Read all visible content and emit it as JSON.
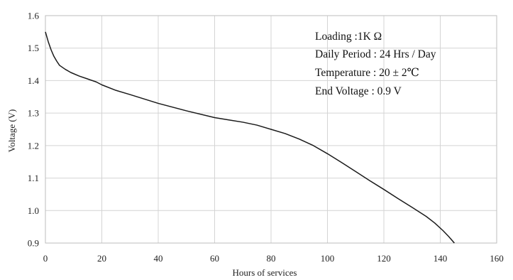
{
  "chart_data": {
    "type": "line",
    "title": "",
    "xlabel": "Hours of services",
    "ylabel": "Voltage (V)",
    "xlim": [
      0,
      160
    ],
    "ylim": [
      0.9,
      1.6
    ],
    "xticks": [
      0,
      20,
      40,
      60,
      80,
      100,
      120,
      140,
      160
    ],
    "yticks": [
      0.9,
      1.0,
      1.1,
      1.2,
      1.3,
      1.4,
      1.5,
      1.6
    ],
    "xtick_labels": [
      "0",
      "20",
      "40",
      "60",
      "80",
      "100",
      "120",
      "140",
      "160"
    ],
    "ytick_labels": [
      "0.9",
      "1.0",
      "1.1",
      "1.2",
      "1.3",
      "1.4",
      "1.5",
      "1.6"
    ],
    "grid": true,
    "annotations": [
      "Loading :1K Ω",
      "Daily Period : 24 Hrs / Day",
      "Temperature : 20 ± 2℃",
      "End Voltage :  0.9 V"
    ],
    "series": [
      {
        "x": [
          0,
          1,
          2,
          3,
          4,
          5,
          7,
          9,
          12,
          15,
          18,
          20,
          25,
          30,
          40,
          50,
          60,
          65,
          70,
          75,
          80,
          85,
          90,
          95,
          100,
          105,
          110,
          115,
          120,
          125,
          130,
          135,
          138,
          141,
          143,
          145
        ],
        "y": [
          1.55,
          1.52,
          1.495,
          1.475,
          1.46,
          1.447,
          1.435,
          1.425,
          1.414,
          1.405,
          1.396,
          1.387,
          1.37,
          1.357,
          1.33,
          1.307,
          1.286,
          1.279,
          1.272,
          1.263,
          1.25,
          1.237,
          1.22,
          1.2,
          1.175,
          1.148,
          1.12,
          1.092,
          1.065,
          1.037,
          1.01,
          0.982,
          0.962,
          0.938,
          0.92,
          0.9
        ],
        "color": "#1a1a1a"
      }
    ]
  }
}
